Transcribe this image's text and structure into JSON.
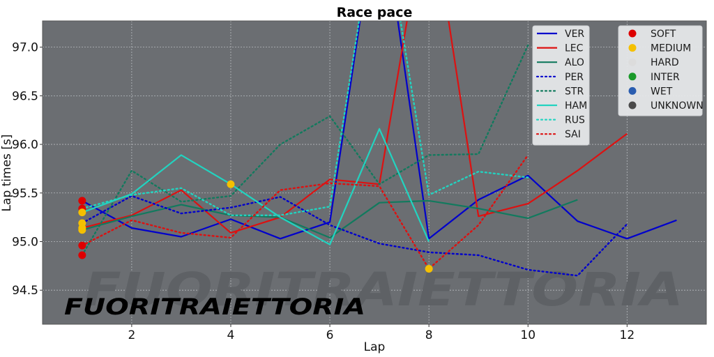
{
  "chart_data": {
    "type": "line",
    "title": "Race pace",
    "xlabel": "Lap",
    "ylabel": "Lap times [s]",
    "xlim": [
      0.2,
      13.6
    ],
    "ylim": [
      94.15,
      97.27
    ],
    "xticks": [
      2,
      4,
      6,
      8,
      10,
      12
    ],
    "yticks": [
      94.5,
      95.0,
      95.5,
      96.0,
      96.5,
      97.0
    ],
    "ytick_labels": [
      "94.5",
      "95.0",
      "95.5",
      "96.0",
      "96.5",
      "97.0"
    ],
    "grid": true,
    "background": "#6b6e72",
    "legend_position": "upper right",
    "series": [
      {
        "name": "VER",
        "color": "#0000cc",
        "style": "solid",
        "x": [
          1,
          2,
          3,
          4,
          5,
          6,
          7,
          8,
          9,
          10,
          11,
          12,
          13
        ],
        "values": [
          95.42,
          95.14,
          95.05,
          95.23,
          95.03,
          95.2,
          98.6,
          95.03,
          95.43,
          95.68,
          95.21,
          95.03,
          95.22
        ]
      },
      {
        "name": "LEC",
        "color": "#dd1111",
        "style": "solid",
        "x": [
          1,
          2,
          3,
          4,
          5,
          6,
          7,
          8,
          9,
          10,
          11,
          12
        ],
        "values": [
          95.14,
          95.27,
          95.53,
          95.09,
          95.25,
          95.64,
          95.59,
          98.6,
          95.26,
          95.39,
          95.73,
          96.11
        ]
      },
      {
        "name": "ALO",
        "color": "#127a5e",
        "style": "solid",
        "x": [
          1,
          2,
          3,
          4,
          5,
          6,
          7,
          8,
          9,
          10,
          11
        ],
        "values": [
          95.12,
          95.26,
          95.38,
          95.27,
          95.25,
          95.04,
          95.4,
          95.42,
          95.34,
          95.24,
          95.43
        ]
      },
      {
        "name": "PER",
        "color": "#0000cc",
        "style": "dotted",
        "x": [
          1,
          2,
          3,
          4,
          5,
          6,
          7,
          8,
          9,
          10,
          11,
          12
        ],
        "values": [
          95.19,
          95.47,
          95.29,
          95.35,
          95.46,
          95.17,
          94.98,
          94.89,
          94.86,
          94.71,
          94.65,
          95.18
        ]
      },
      {
        "name": "STR",
        "color": "#127a5e",
        "style": "dotted",
        "x": [
          1,
          2,
          3,
          4,
          5,
          6,
          7,
          8,
          9,
          10
        ],
        "values": [
          94.86,
          95.73,
          95.41,
          95.47,
          96.0,
          96.29,
          95.59,
          95.89,
          95.9,
          97.02
        ]
      },
      {
        "name": "HAM",
        "color": "#22d3c0",
        "style": "solid",
        "x": [
          1,
          2,
          3,
          4,
          5,
          6,
          7,
          8
        ],
        "values": [
          95.3,
          95.49,
          95.89,
          95.59,
          95.25,
          94.97,
          96.16,
          95.0
        ]
      },
      {
        "name": "RUS",
        "color": "#22d3c0",
        "style": "dotted",
        "x": [
          1,
          2,
          3,
          4,
          5,
          6,
          7,
          8,
          9,
          10
        ],
        "values": [
          95.34,
          95.48,
          95.55,
          95.27,
          95.27,
          95.36,
          98.6,
          95.48,
          95.72,
          95.66
        ]
      },
      {
        "name": "SAI",
        "color": "#dd1111",
        "style": "dotted",
        "x": [
          1,
          2,
          3,
          4,
          5,
          6,
          7,
          8,
          9,
          10
        ],
        "values": [
          94.96,
          95.22,
          95.09,
          95.04,
          95.53,
          95.6,
          95.57,
          94.72,
          95.17,
          95.89
        ]
      }
    ],
    "compound_markers": [
      {
        "x": 1,
        "y": 95.42,
        "compound": "SOFT"
      },
      {
        "x": 1,
        "y": 95.34,
        "compound": "SOFT"
      },
      {
        "x": 1,
        "y": 95.3,
        "compound": "MEDIUM"
      },
      {
        "x": 1,
        "y": 95.19,
        "compound": "MEDIUM"
      },
      {
        "x": 1,
        "y": 95.14,
        "compound": "MEDIUM"
      },
      {
        "x": 1,
        "y": 95.12,
        "compound": "MEDIUM"
      },
      {
        "x": 1,
        "y": 94.96,
        "compound": "SOFT"
      },
      {
        "x": 1,
        "y": 94.86,
        "compound": "SOFT"
      },
      {
        "x": 4,
        "y": 95.59,
        "compound": "MEDIUM"
      },
      {
        "x": 8,
        "y": 94.72,
        "compound": "MEDIUM"
      }
    ],
    "compound_legend": [
      {
        "name": "SOFT",
        "color": "#dd0000"
      },
      {
        "name": "MEDIUM",
        "color": "#f5c000"
      },
      {
        "name": "HARD",
        "color": "#dcdcdc"
      },
      {
        "name": "INTER",
        "color": "#1a9a2a"
      },
      {
        "name": "WET",
        "color": "#2a5db0"
      },
      {
        "name": "UNKNOWN",
        "color": "#4a4a4a"
      }
    ],
    "annotations": [
      "FUORITRAIETTORIA"
    ]
  },
  "watermark": {
    "text": "FUORITRAIETTORIA"
  }
}
